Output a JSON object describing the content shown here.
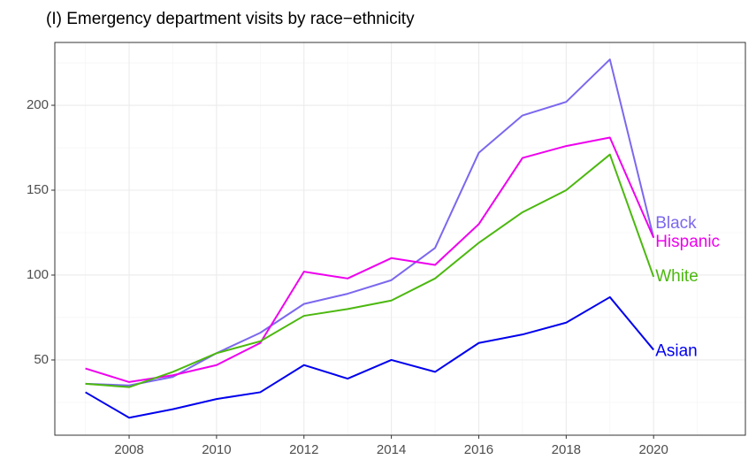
{
  "chart_data": {
    "type": "line",
    "title": "(I) Emergency department visits by race−ethnicity",
    "x": [
      2007,
      2008,
      2009,
      2010,
      2011,
      2012,
      2013,
      2014,
      2015,
      2016,
      2017,
      2018,
      2019,
      2020
    ],
    "series": [
      {
        "name": "Black",
        "color": "#7b68ee",
        "values": [
          36,
          35,
          40,
          54,
          66,
          83,
          89,
          97,
          116,
          172,
          194,
          202,
          227,
          122
        ]
      },
      {
        "name": "Hispanic",
        "color": "#ee00ee",
        "values": [
          45,
          37,
          41,
          47,
          60,
          102,
          98,
          110,
          106,
          130,
          169,
          176,
          181,
          122
        ]
      },
      {
        "name": "White",
        "color": "#4cb80f",
        "values": [
          36,
          34,
          43,
          54,
          61,
          76,
          80,
          85,
          98,
          119,
          137,
          150,
          171,
          99
        ]
      },
      {
        "name": "Asian",
        "color": "#0000ee",
        "values": [
          31,
          16,
          21,
          27,
          31,
          47,
          39,
          50,
          43,
          60,
          65,
          72,
          87,
          56
        ]
      }
    ],
    "xlim": [
      2006.3,
      2022.1
    ],
    "ylim": [
      5.7,
      237
    ],
    "xticks": [
      2008,
      2010,
      2012,
      2014,
      2016,
      2018,
      2020
    ],
    "yticks": [
      50,
      100,
      150,
      200
    ],
    "x_minor_ticks": [
      2007,
      2009,
      2011,
      2013,
      2015,
      2017,
      2019,
      2021
    ],
    "y_minor_ticks": [
      25,
      75,
      125,
      175,
      225
    ],
    "grid": true
  }
}
